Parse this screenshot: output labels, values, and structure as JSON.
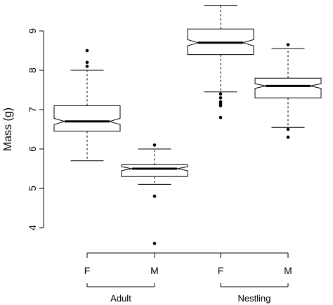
{
  "chart_data": {
    "type": "boxplot",
    "title": "",
    "ylabel": "Mass (g)",
    "xlabel": "",
    "ylim": [
      3.5,
      9.5
    ],
    "yticks": [
      4,
      5,
      6,
      7,
      8,
      9
    ],
    "notched": true,
    "categories": [
      "F",
      "M",
      "F",
      "M"
    ],
    "groups": [
      {
        "label": "Adult",
        "categories": [
          0,
          1
        ]
      },
      {
        "label": "Nestling",
        "categories": [
          2,
          3
        ]
      }
    ],
    "boxes": [
      {
        "category": "F",
        "group": "Adult",
        "whisker_low": 5.7,
        "q1": 6.45,
        "median": 6.7,
        "q3": 7.1,
        "whisker_high": 8.0,
        "notch_low": 6.62,
        "notch_high": 6.78,
        "outliers": [
          8.1,
          8.2,
          8.5
        ]
      },
      {
        "category": "M",
        "group": "Adult",
        "whisker_low": 5.1,
        "q1": 5.3,
        "median": 5.5,
        "q3": 5.6,
        "whisker_high": 6.0,
        "notch_low": 5.45,
        "notch_high": 5.55,
        "outliers": [
          6.1,
          4.8,
          3.6
        ]
      },
      {
        "category": "F",
        "group": "Nestling",
        "whisker_low": 7.45,
        "q1": 8.4,
        "median": 8.7,
        "q3": 9.05,
        "whisker_high": 9.65,
        "notch_low": 8.62,
        "notch_high": 8.78,
        "outliers": [
          7.4,
          7.3,
          7.2,
          7.15,
          7.1,
          6.8
        ]
      },
      {
        "category": "M",
        "group": "Nestling",
        "whisker_low": 6.55,
        "q1": 7.3,
        "median": 7.6,
        "q3": 7.8,
        "whisker_high": 8.55,
        "notch_low": 7.54,
        "notch_high": 7.66,
        "outliers": [
          8.65,
          6.5,
          6.3
        ]
      }
    ]
  }
}
